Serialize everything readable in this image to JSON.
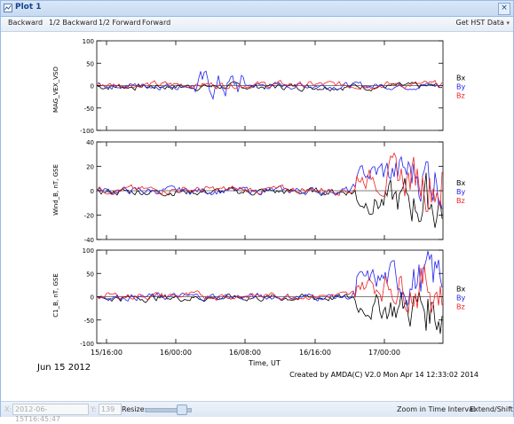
{
  "window": {
    "title": "Plot 1",
    "close_label": "×"
  },
  "toolbar": {
    "backward": "Backward",
    "half_backward": "1/2 Backward",
    "half_forward": "1/2 Forward",
    "forward": "Forward",
    "get_hst": "Get HST Data",
    "get_hst_arrow": "▾"
  },
  "plot": {
    "date_label": "Jun 15 2012",
    "credit": "Created by AMDA(C) V2.0 Mon Apr 14 12:33:02 2014",
    "x_axis_label": "Time, UT",
    "x_ticks": [
      "15/16:00",
      "16/00:00",
      "16/08:00",
      "16/16:00",
      "17/00:00"
    ],
    "panels": [
      {
        "ylabel": "MAG_VEX_VSO",
        "yticks": [
          "100",
          "50",
          "0",
          "-50",
          "-100"
        ],
        "ymin": -100,
        "ymax": 100
      },
      {
        "ylabel": "Wind_B, nT, GSE",
        "yticks": [
          "40",
          "20",
          "0",
          "-20",
          "-40"
        ],
        "ymin": -40,
        "ymax": 40
      },
      {
        "ylabel": "C1_B, nT, GSE",
        "yticks": [
          "100",
          "50",
          "0",
          "-50",
          "-100"
        ],
        "ymin": -100,
        "ymax": 100
      }
    ],
    "legend": [
      {
        "name": "Bx",
        "color": "#000000"
      },
      {
        "name": "By",
        "color": "#2222ee"
      },
      {
        "name": "Bz",
        "color": "#ee2222"
      }
    ]
  },
  "status": {
    "x_label": "X:",
    "x_value": "2012-06-15T16:45:47",
    "y_label": "Y:",
    "y_value": "139",
    "resize_label": "Resize:",
    "zoom_label": "Zoom in Time Interval",
    "extend_label": "Extend/Shift"
  }
}
